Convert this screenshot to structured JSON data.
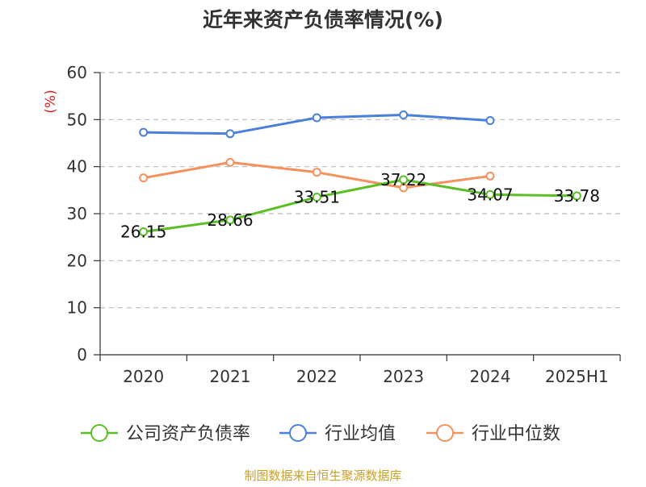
{
  "chart_data": {
    "type": "line",
    "title": "近年来资产负债率情况(%)",
    "ylabel": "(%)",
    "xlabel": "",
    "categories": [
      "2020",
      "2021",
      "2022",
      "2023",
      "2024",
      "2025H1"
    ],
    "ylim": [
      0,
      60
    ],
    "yticks": [
      0,
      10,
      20,
      30,
      40,
      50,
      60
    ],
    "grid": true,
    "legend_position": "bottom",
    "series": [
      {
        "name": "公司资产负债率",
        "color": "#5cbf26",
        "values": [
          26.15,
          28.66,
          33.51,
          37.22,
          34.07,
          33.78
        ],
        "labels": [
          "26.15",
          "28.66",
          "33.51",
          "37.22",
          "34.07",
          "33.78"
        ]
      },
      {
        "name": "行业均值",
        "color": "#4a7fdc",
        "values": [
          47.3,
          47.0,
          50.4,
          51.0,
          49.8,
          null
        ]
      },
      {
        "name": "行业中位数",
        "color": "#f5915c",
        "values": [
          37.6,
          40.9,
          38.8,
          35.5,
          38.0,
          null
        ]
      }
    ],
    "source": "制图数据来自恒生聚源数据库"
  }
}
